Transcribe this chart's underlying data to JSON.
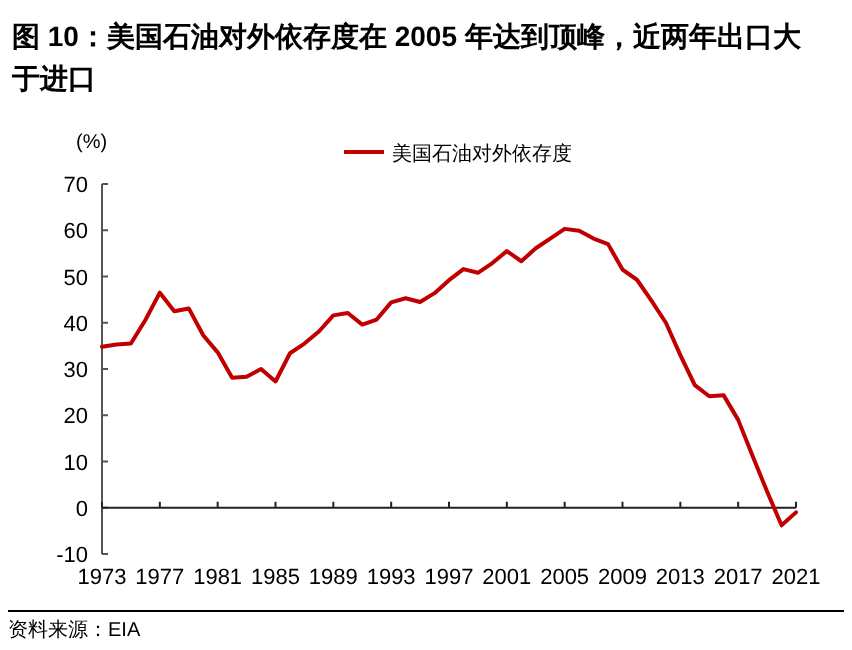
{
  "chart_data": {
    "type": "line",
    "title": "图 10：美国石油对外依存度在 2005 年达到顶峰，近两年出口大于进口",
    "ylabel": "(%)",
    "x": [
      1973,
      1974,
      1975,
      1976,
      1977,
      1978,
      1979,
      1980,
      1981,
      1982,
      1983,
      1984,
      1985,
      1986,
      1987,
      1988,
      1989,
      1990,
      1991,
      1992,
      1993,
      1994,
      1995,
      1996,
      1997,
      1998,
      1999,
      2000,
      2001,
      2002,
      2003,
      2004,
      2005,
      2006,
      2007,
      2008,
      2009,
      2010,
      2011,
      2012,
      2013,
      2014,
      2015,
      2016,
      2017,
      2018,
      2019,
      2020,
      2021
    ],
    "series": [
      {
        "name": "美国石油对外依存度",
        "color": "#c00000",
        "values": [
          34.8,
          35.3,
          35.5,
          40.6,
          46.5,
          42.5,
          43.1,
          37.3,
          33.6,
          28.1,
          28.3,
          30.0,
          27.3,
          33.4,
          35.5,
          38.1,
          41.6,
          42.1,
          39.6,
          40.7,
          44.4,
          45.3,
          44.5,
          46.4,
          49.2,
          51.6,
          50.8,
          52.9,
          55.5,
          53.3,
          56.1,
          58.2,
          60.3,
          59.9,
          58.2,
          57.0,
          51.5,
          49.3,
          44.8,
          40.0,
          33.0,
          26.5,
          24.1,
          24.3,
          19.0,
          11.2,
          3.5,
          -3.8,
          -1.0
        ]
      }
    ],
    "xlim": [
      1973,
      2021
    ],
    "xticks": [
      1973,
      1977,
      1981,
      1985,
      1989,
      1993,
      1997,
      2001,
      2005,
      2009,
      2013,
      2017,
      2021
    ],
    "ylim": [
      -10,
      70
    ],
    "yticks": [
      -10,
      0,
      10,
      20,
      30,
      40,
      50,
      60,
      70
    ],
    "legend": "top",
    "marker": "none",
    "line_style": "solid",
    "annotations": [
      "资料来源：EIA"
    ]
  }
}
